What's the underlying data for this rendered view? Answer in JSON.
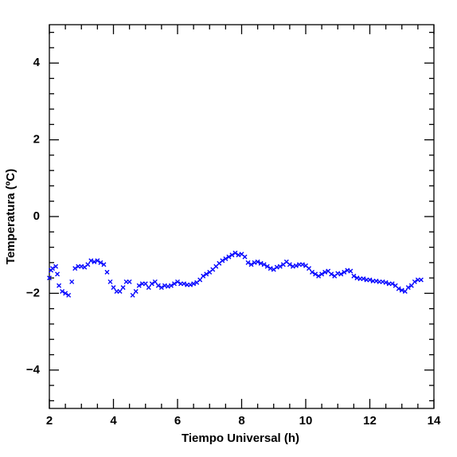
{
  "chart_data": {
    "type": "scatter",
    "x_label": "Tiempo Universal (h)",
    "y_label": "Temperatura (ºC)",
    "xlim": [
      2,
      14
    ],
    "ylim": [
      -5,
      5
    ],
    "xticks": [
      2,
      4,
      6,
      8,
      10,
      12,
      14
    ],
    "yticks": [
      {
        "value": -4,
        "label": "−4"
      },
      {
        "value": -2,
        "label": "−2"
      },
      0,
      2,
      4
    ],
    "color": "#0000ff",
    "x": [
      2.0,
      2.05,
      2.1,
      2.2,
      2.25,
      2.3,
      2.4,
      2.5,
      2.6,
      2.7,
      2.8,
      2.9,
      3.0,
      3.1,
      3.2,
      3.3,
      3.4,
      3.5,
      3.6,
      3.7,
      3.8,
      3.9,
      4.0,
      4.1,
      4.2,
      4.3,
      4.4,
      4.5,
      4.6,
      4.7,
      4.8,
      4.9,
      5.0,
      5.1,
      5.2,
      5.3,
      5.4,
      5.5,
      5.6,
      5.7,
      5.8,
      5.9,
      6.0,
      6.1,
      6.2,
      6.3,
      6.4,
      6.5,
      6.6,
      6.7,
      6.8,
      6.9,
      7.0,
      7.1,
      7.2,
      7.3,
      7.4,
      7.5,
      7.6,
      7.7,
      7.8,
      7.9,
      8.0,
      8.1,
      8.2,
      8.3,
      8.4,
      8.5,
      8.6,
      8.7,
      8.8,
      8.9,
      9.0,
      9.1,
      9.2,
      9.3,
      9.4,
      9.5,
      9.6,
      9.7,
      9.8,
      9.9,
      10.0,
      10.1,
      10.2,
      10.3,
      10.4,
      10.5,
      10.6,
      10.7,
      10.8,
      10.9,
      11.0,
      11.1,
      11.2,
      11.3,
      11.4,
      11.5,
      11.6,
      11.7,
      11.8,
      11.9,
      12.0,
      12.1,
      12.2,
      12.3,
      12.4,
      12.5,
      12.6,
      12.7,
      12.8,
      12.9,
      13.0,
      13.1,
      13.2,
      13.3,
      13.4,
      13.5,
      13.6
    ],
    "y": [
      -1.6,
      -1.4,
      -1.35,
      -1.3,
      -1.5,
      -1.8,
      -1.95,
      -2.0,
      -2.05,
      -1.7,
      -1.35,
      -1.3,
      -1.3,
      -1.32,
      -1.25,
      -1.15,
      -1.18,
      -1.15,
      -1.2,
      -1.25,
      -1.45,
      -1.7,
      -1.85,
      -1.95,
      -1.95,
      -1.85,
      -1.7,
      -1.7,
      -2.05,
      -1.95,
      -1.8,
      -1.75,
      -1.75,
      -1.85,
      -1.75,
      -1.7,
      -1.8,
      -1.85,
      -1.8,
      -1.82,
      -1.8,
      -1.75,
      -1.7,
      -1.75,
      -1.75,
      -1.78,
      -1.78,
      -1.75,
      -1.72,
      -1.65,
      -1.55,
      -1.5,
      -1.45,
      -1.38,
      -1.3,
      -1.22,
      -1.15,
      -1.1,
      -1.05,
      -1.0,
      -0.95,
      -1.0,
      -0.98,
      -1.05,
      -1.2,
      -1.25,
      -1.2,
      -1.18,
      -1.22,
      -1.25,
      -1.3,
      -1.35,
      -1.38,
      -1.32,
      -1.3,
      -1.25,
      -1.18,
      -1.25,
      -1.3,
      -1.28,
      -1.25,
      -1.25,
      -1.28,
      -1.35,
      -1.45,
      -1.5,
      -1.55,
      -1.5,
      -1.45,
      -1.42,
      -1.5,
      -1.55,
      -1.48,
      -1.5,
      -1.45,
      -1.4,
      -1.42,
      -1.55,
      -1.6,
      -1.62,
      -1.62,
      -1.65,
      -1.65,
      -1.68,
      -1.68,
      -1.7,
      -1.7,
      -1.72,
      -1.75,
      -1.75,
      -1.8,
      -1.88,
      -1.92,
      -1.95,
      -1.85,
      -1.8,
      -1.7,
      -1.65,
      -1.65
    ]
  }
}
